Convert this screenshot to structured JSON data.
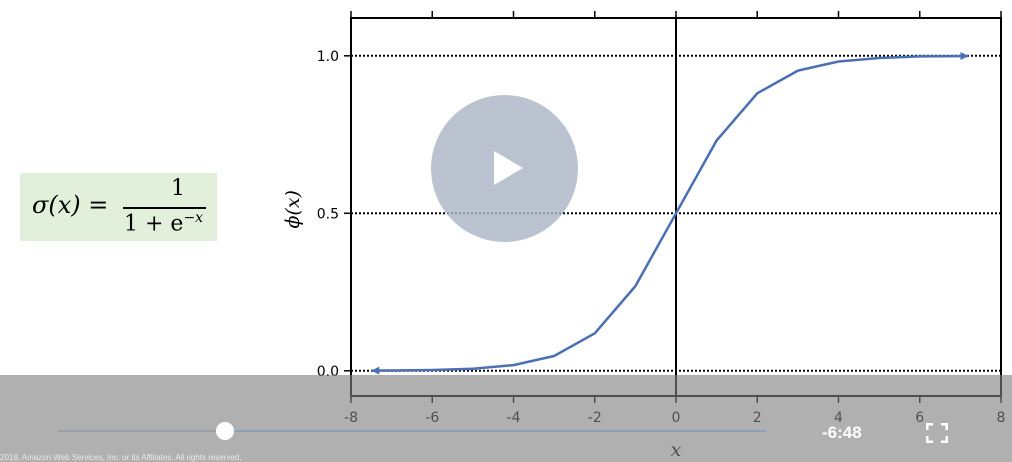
{
  "formula": {
    "lhs": "σ(x) =",
    "numerator": "1",
    "denominator_base": "1 + e",
    "denominator_exponent": "−x"
  },
  "player": {
    "time_remaining": "-6:48",
    "progress": 0.237,
    "copyright": "2018, Amazon Web Services, Inc. or its Affiliates. All rights reserved."
  },
  "chart_data": {
    "type": "line",
    "xlabel": "x",
    "ylabel": "ϕ(x)",
    "xlim": [
      -8,
      8
    ],
    "ylim": [
      -0.08,
      1.12
    ],
    "x_ticks": [
      -8,
      -6,
      -4,
      -2,
      0,
      2,
      4,
      6,
      8
    ],
    "y_ticks": [
      0.0,
      0.5,
      1.0
    ],
    "x_tick_labels": [
      "-8",
      "-6",
      "-4",
      "-2",
      "0",
      "2",
      "4",
      "6",
      "8"
    ],
    "y_tick_labels": [
      "0.0",
      "0.5",
      "1.0"
    ],
    "gridlines": "horizontal dotted at y ticks",
    "series": [
      {
        "color": "#4a6fb3",
        "x": [
          -7.5,
          -7,
          -6,
          -5,
          -4,
          -3,
          -2,
          -1,
          0,
          1,
          2,
          3,
          4,
          5,
          6,
          7,
          7.2
        ],
        "y": [
          0.0006,
          0.0009,
          0.0025,
          0.0067,
          0.018,
          0.047,
          0.119,
          0.269,
          0.5,
          0.731,
          0.881,
          0.953,
          0.982,
          0.993,
          0.998,
          0.9991,
          0.9993
        ]
      }
    ]
  },
  "colors": {
    "curve": "#4a6fb3",
    "formula_bg": "#e2efda",
    "play_button": "#acb6c6"
  }
}
